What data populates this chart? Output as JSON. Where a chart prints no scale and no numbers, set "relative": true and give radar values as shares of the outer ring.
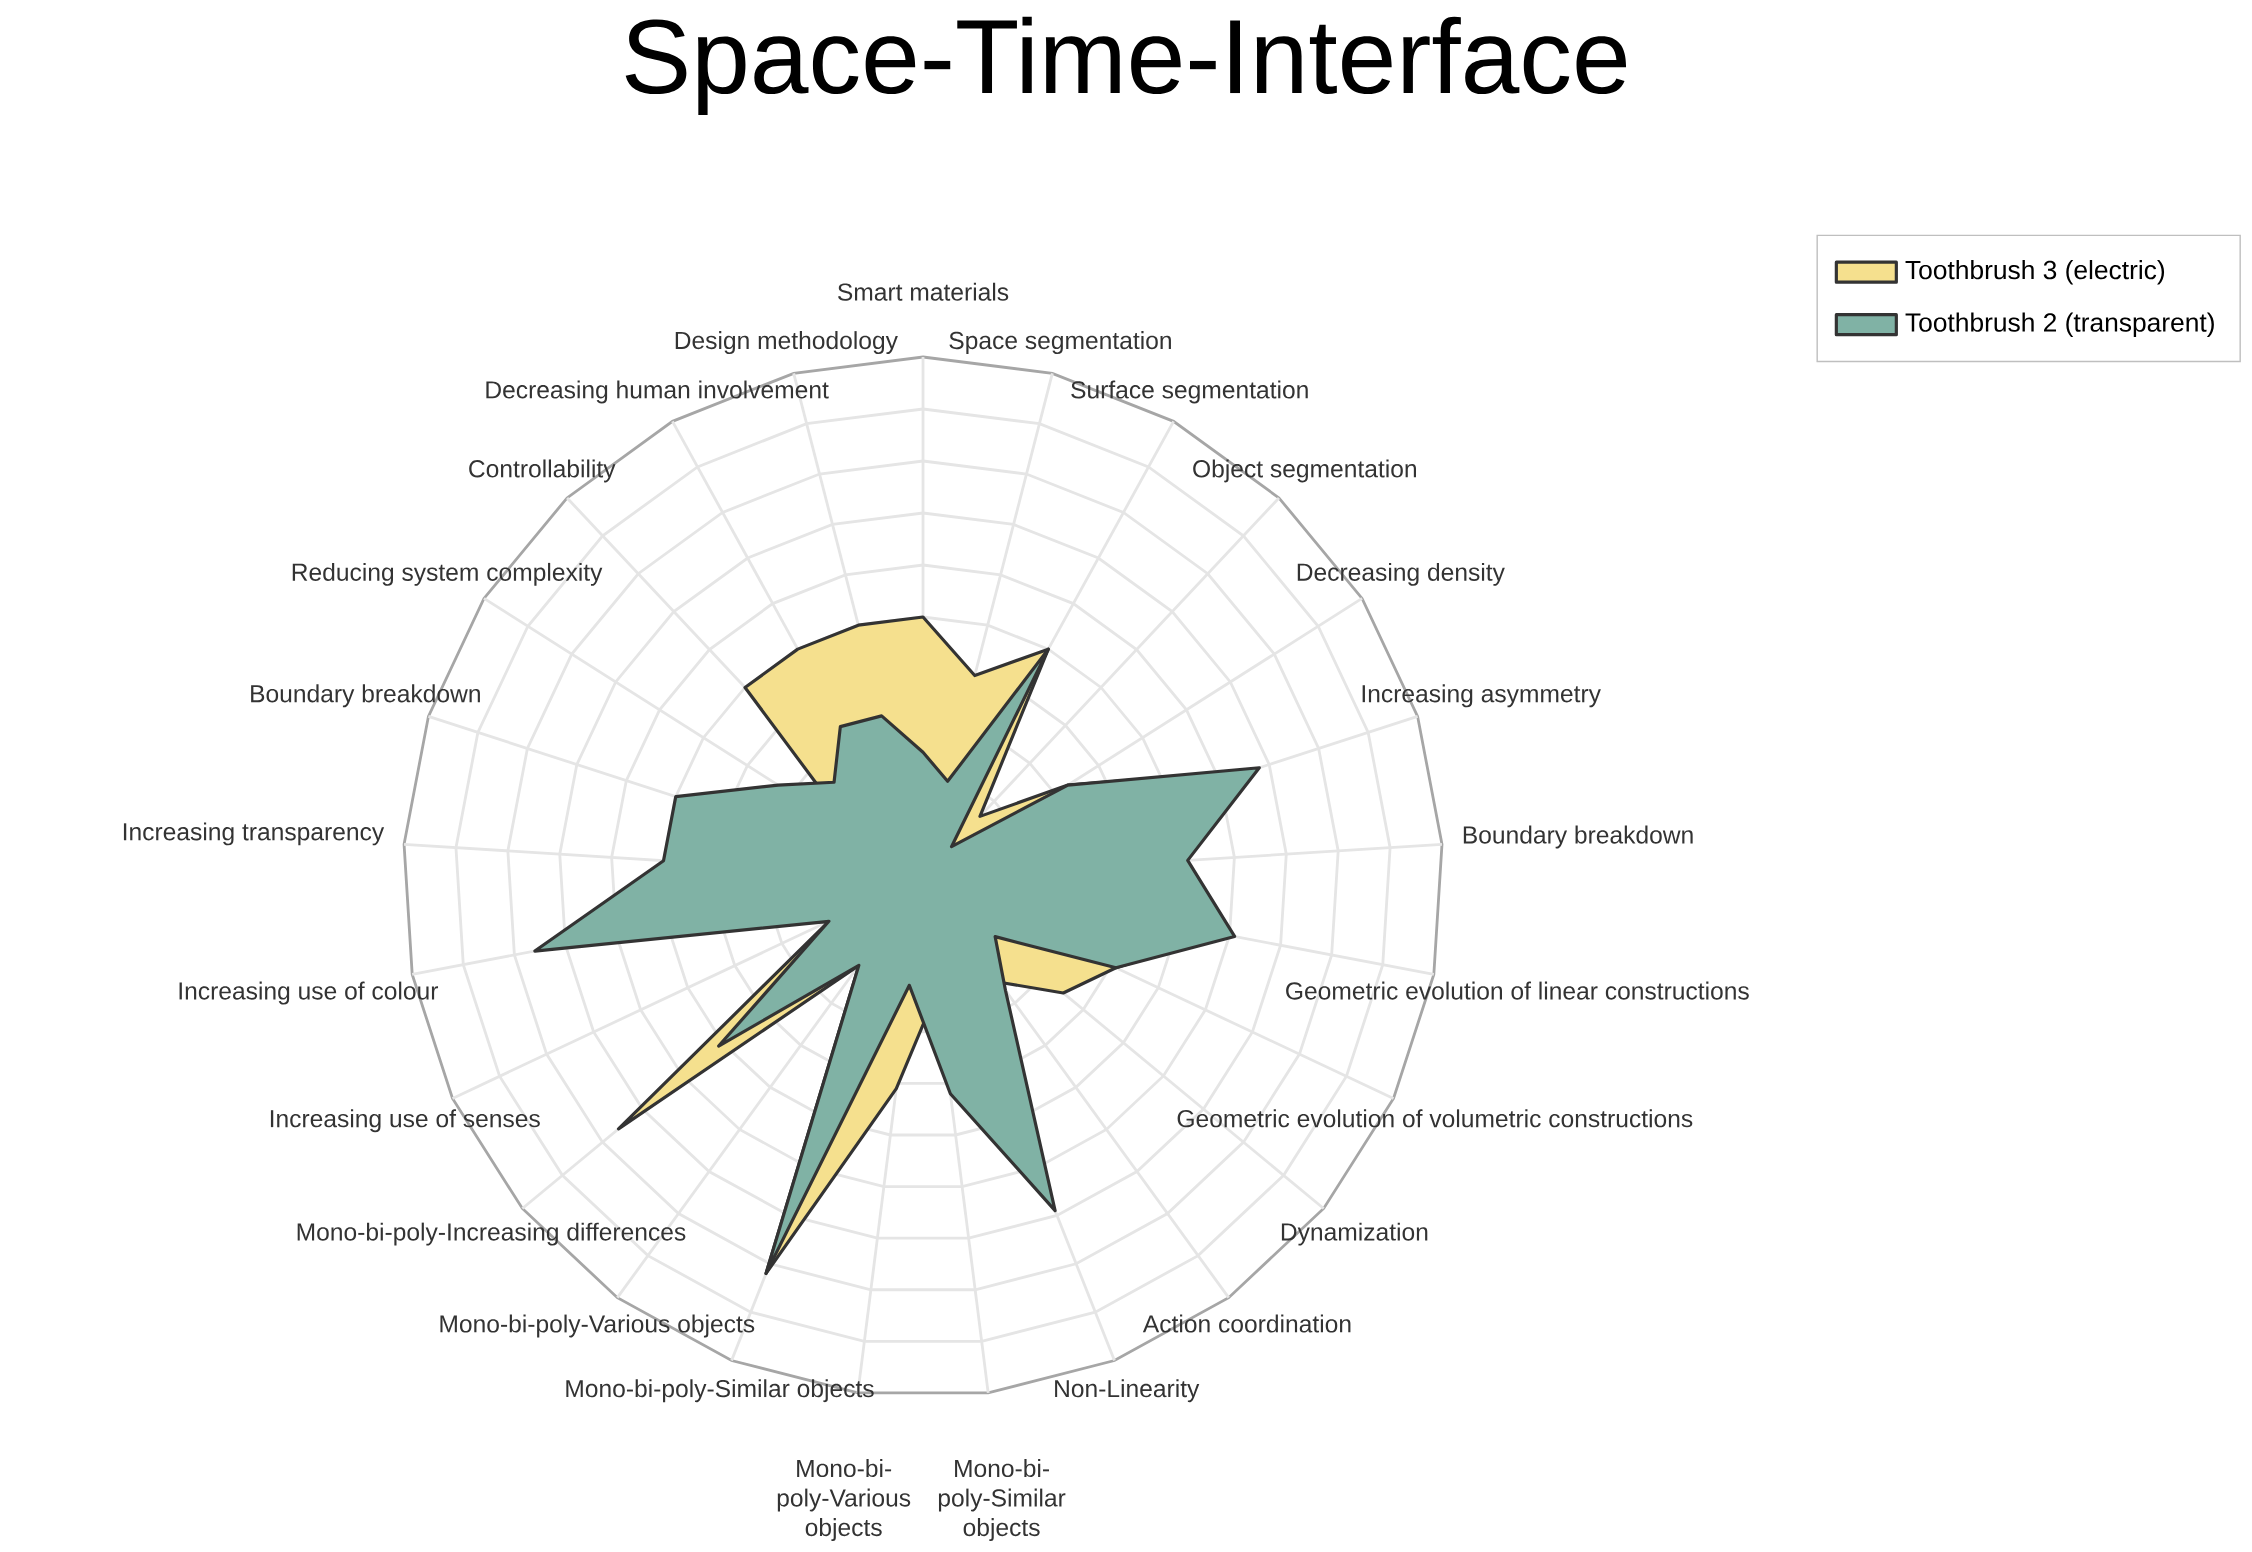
{
  "chart_data": {
    "type": "radar",
    "title": "Space-Time-Interface",
    "categories": [
      "Smart materials",
      "Space segmentation",
      "Surface segmentation",
      "Object segmentation",
      "Decreasing density",
      "Increasing asymmetry",
      "Boundary breakdown",
      "Geometric evolution of linear constructions",
      "Geometric evolution of volumetric constructions",
      "Dynamization",
      "Action coordination",
      "Non-Linearity",
      "Mono-bi-poly-Similar objects",
      "Mono-bi-poly-Various objects",
      "Mono-bi-poly-Similar objects",
      "Mono-bi-poly-Various objects",
      "Mono-bi-poly-Increasing differences",
      "Increasing use of senses",
      "Increasing use of colour",
      "Increasing transparency",
      "Boundary breakdown",
      "Reducing system complexity",
      "Controllability",
      "Decreasing human involvement",
      "Design methodology"
    ],
    "relative": true,
    "grid": true,
    "legend": "top right",
    "series": [
      {
        "name": "Toothbrush 3 (electric)",
        "color": "#f5e08e",
        "values": [
          0.5,
          0.4,
          0.5,
          0.16,
          0.33,
          0.66,
          0.26,
          0.59,
          0.41,
          0.35,
          0.25,
          0.35,
          0.22,
          0.41,
          0.82,
          0.21,
          0.76,
          0.2,
          0.51,
          0.25,
          0.25,
          0.16,
          0.5,
          0.5,
          0.5
        ]
      },
      {
        "name": "Toothbrush 2 (transparent)",
        "color": "#80b2a5",
        "values": [
          0.24,
          0.19,
          0.5,
          0.08,
          0.33,
          0.68,
          0.51,
          0.61,
          0.41,
          0.18,
          0.27,
          0.69,
          0.42,
          0.21,
          0.82,
          0.21,
          0.51,
          0.2,
          0.76,
          0.5,
          0.5,
          0.33,
          0.25,
          0.33,
          0.32
        ]
      }
    ]
  }
}
